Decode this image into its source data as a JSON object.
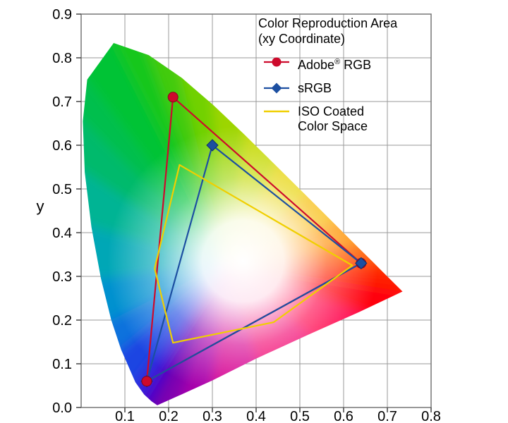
{
  "title": {
    "line1": "Color Reproduction Area",
    "line2": "(xy Coordinate)"
  },
  "legend": {
    "items": [
      {
        "name": "Adobe RGB",
        "label_base": "Adobe",
        "label_sup": "®",
        "label_rest": " RGB",
        "color": "#cd0a2c",
        "marker": "circle"
      },
      {
        "name": "sRGB",
        "label": "sRGB",
        "color": "#1c4fa1",
        "marker": "diamond"
      },
      {
        "name": "ISO Coated Color Space",
        "label_line1": "ISO Coated",
        "label_line2": "Color Space",
        "color": "#f0cf00",
        "marker": "line"
      }
    ]
  },
  "chart_data": {
    "type": "line",
    "title": "Color Reproduction Area (xy Coordinate)",
    "xlabel": "",
    "ylabel": "y",
    "xlim": [
      0,
      0.8
    ],
    "ylim": [
      0,
      0.9
    ],
    "grid": true,
    "grid_step": 0.1,
    "x_ticks": [
      "0.1",
      "0.2",
      "0.3",
      "0.4",
      "0.5",
      "0.6",
      "0.7",
      "0.8"
    ],
    "y_ticks": [
      "0.0",
      "0.1",
      "0.2",
      "0.3",
      "0.4",
      "0.5",
      "0.6",
      "0.7",
      "0.8",
      "0.9"
    ],
    "legend_position": "top-right",
    "series": [
      {
        "name": "Adobe® RGB",
        "color": "#cd0a2c",
        "marker": "circle",
        "closed": true,
        "points": [
          [
            0.21,
            0.71
          ],
          [
            0.64,
            0.33
          ],
          [
            0.15,
            0.06
          ]
        ]
      },
      {
        "name": "sRGB",
        "color": "#1c4fa1",
        "marker": "diamond",
        "closed": true,
        "points": [
          [
            0.3,
            0.6
          ],
          [
            0.64,
            0.33
          ],
          [
            0.15,
            0.06
          ]
        ]
      },
      {
        "name": "ISO Coated Color Space",
        "color": "#f0cf00",
        "marker": "none",
        "closed": true,
        "points": [
          [
            0.225,
            0.555
          ],
          [
            0.62,
            0.325
          ],
          [
            0.44,
            0.195
          ],
          [
            0.21,
            0.148
          ],
          [
            0.168,
            0.318
          ]
        ]
      }
    ],
    "white_point": [
      0.37,
      0.335
    ],
    "spectral_locus": [
      [
        0.1741,
        0.005,
        "#5f00b0"
      ],
      [
        0.1611,
        0.0138,
        "#4a00cc"
      ],
      [
        0.144,
        0.0297,
        "#3020dd"
      ],
      [
        0.1241,
        0.0578,
        "#1a45e2"
      ],
      [
        0.0913,
        0.1327,
        "#0b72dd"
      ],
      [
        0.0687,
        0.2007,
        "#0091cf"
      ],
      [
        0.0454,
        0.295,
        "#00a7b6"
      ],
      [
        0.0235,
        0.4127,
        "#00b494"
      ],
      [
        0.0082,
        0.5384,
        "#00ba6c"
      ],
      [
        0.0039,
        0.6548,
        "#00bf4e"
      ],
      [
        0.0139,
        0.7502,
        "#00c336"
      ],
      [
        0.0743,
        0.8338,
        "#15c71e"
      ],
      [
        0.1547,
        0.8059,
        "#43cb0c"
      ],
      [
        0.2296,
        0.7543,
        "#72d103"
      ],
      [
        0.3016,
        0.6923,
        "#9dd500"
      ],
      [
        0.3731,
        0.6245,
        "#c4d900"
      ],
      [
        0.4441,
        0.5547,
        "#e6d300"
      ],
      [
        0.5125,
        0.4866,
        "#f7b900"
      ],
      [
        0.5752,
        0.4242,
        "#ff9300"
      ],
      [
        0.627,
        0.3725,
        "#ff5b00"
      ],
      [
        0.6658,
        0.334,
        "#ff3500"
      ],
      [
        0.6915,
        0.3083,
        "#ff1c00"
      ],
      [
        0.7347,
        0.2653,
        "#ff0011"
      ],
      [
        0.635,
        0.218,
        "#ff0048"
      ],
      [
        0.52,
        0.167,
        "#f2006e"
      ],
      [
        0.4,
        0.112,
        "#d60091"
      ],
      [
        0.3,
        0.062,
        "#a800ab"
      ],
      [
        0.23,
        0.03,
        "#8000b0"
      ]
    ]
  }
}
